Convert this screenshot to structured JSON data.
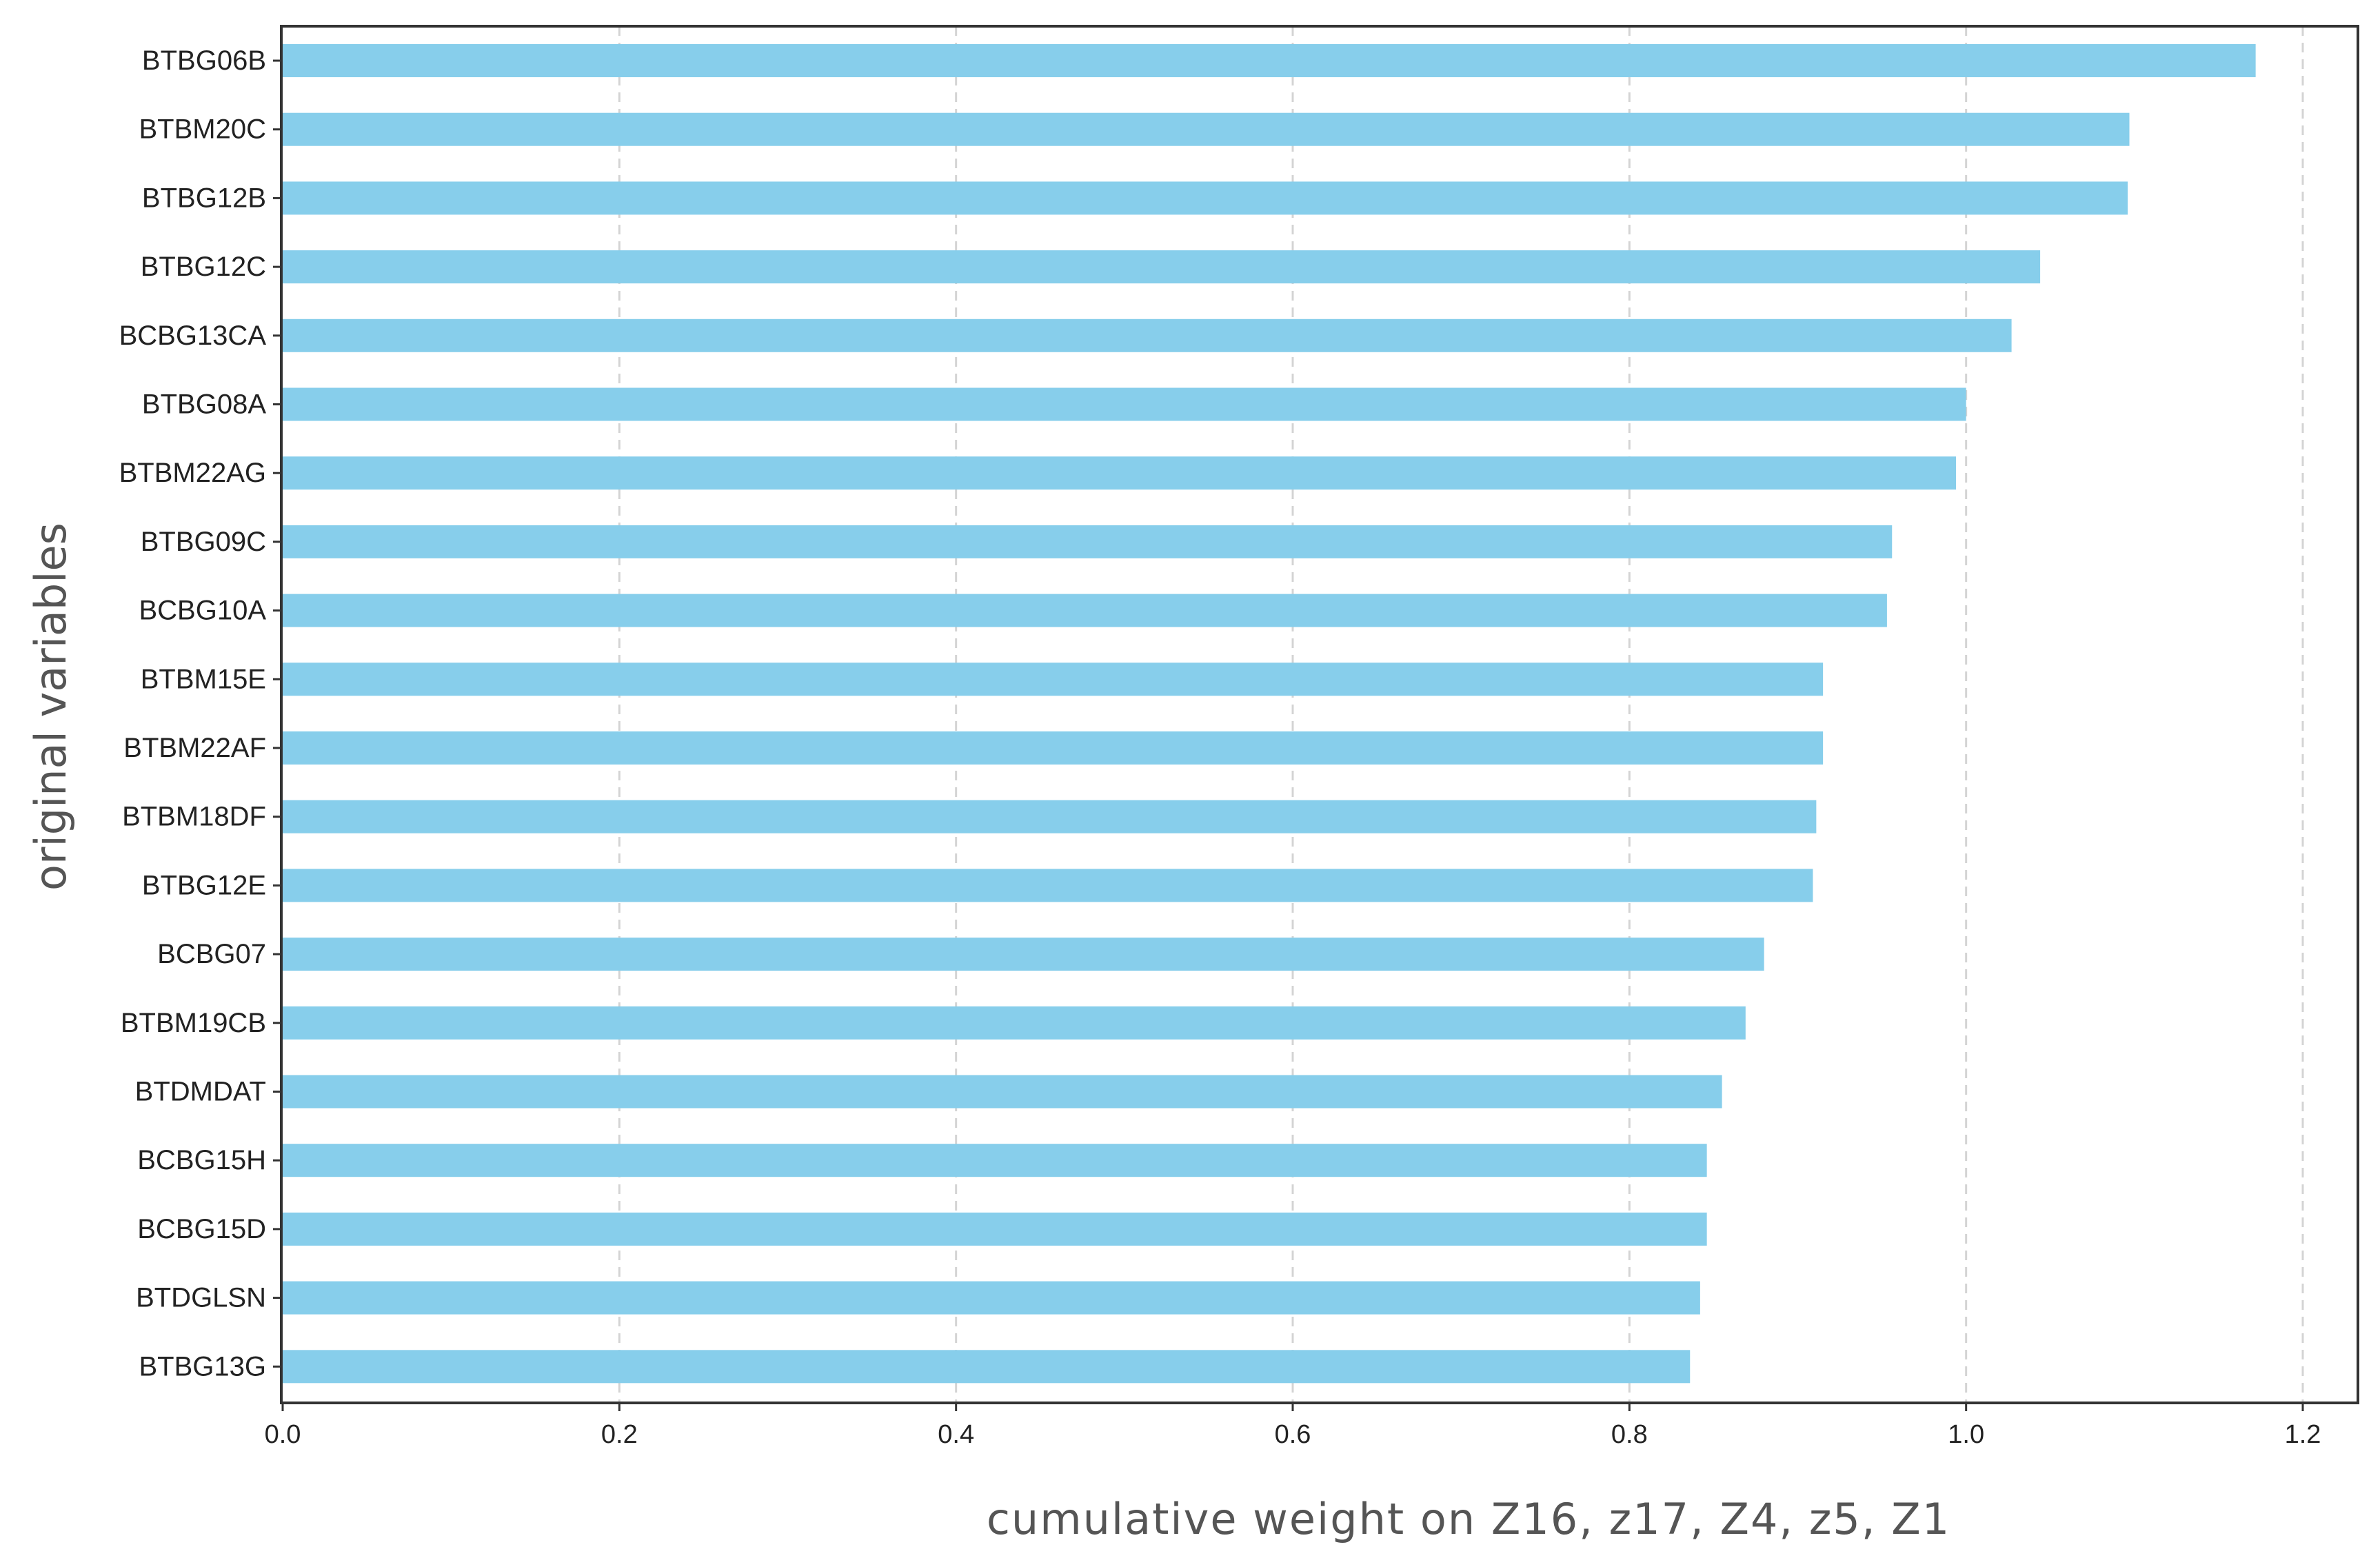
{
  "chart_data": {
    "type": "bar",
    "orientation": "horizontal",
    "title": "",
    "xlabel": "cumulative weight on Z16, z17, Z4, z5, Z1",
    "ylabel": "original variables",
    "xlim": [
      0,
      1.23
    ],
    "xticks": [
      0.0,
      0.2,
      0.4,
      0.6,
      0.8,
      1.0,
      1.2
    ],
    "xtick_labels": [
      "0.0",
      "0.2",
      "0.4",
      "0.6",
      "0.8",
      "1.0",
      "1.2"
    ],
    "grid": "vertical dashed",
    "bar_color": "#87ceeb",
    "categories": [
      "BTBG06B",
      "BTBM20C",
      "BTBG12B",
      "BTBG12C",
      "BCBG13CA",
      "BTBG08A",
      "BTBM22AG",
      "BTBG09C",
      "BCBG10A",
      "BTBM15E",
      "BTBM22AF",
      "BTBM18DF",
      "BTBG12E",
      "BCBG07",
      "BTBM19CB",
      "BTDMDAT",
      "BCBG15H",
      "BCBG15D",
      "BTDGLSN",
      "BTBG13G"
    ],
    "values": [
      1.172,
      1.097,
      1.096,
      1.044,
      1.027,
      1.0,
      0.994,
      0.956,
      0.953,
      0.915,
      0.915,
      0.911,
      0.909,
      0.88,
      0.869,
      0.855,
      0.846,
      0.846,
      0.842,
      0.836
    ]
  }
}
